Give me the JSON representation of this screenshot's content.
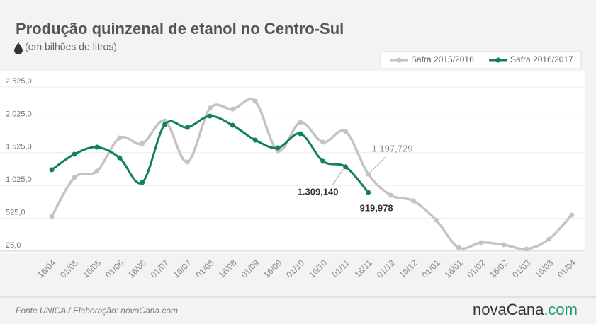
{
  "chart_data": {
    "type": "line",
    "title": "Produção quinzenal de etanol no Centro-Sul",
    "subtitle": "(em bilhões de litros)",
    "source": "Fonte UNICA / Elaboração: novaCana.com",
    "logo": {
      "name": "novaCana",
      "suffix": ".com"
    },
    "categories": [
      "16/04",
      "01/05",
      "16/05",
      "01/06",
      "16/06",
      "01/07",
      "16/07",
      "01/08",
      "16/08",
      "01/09",
      "16/09",
      "01/10",
      "16/10",
      "01/11",
      "16/11",
      "01/12",
      "16/12",
      "01/01",
      "16/01",
      "01/02",
      "16/02",
      "01/03",
      "16/03",
      "01/04"
    ],
    "series": [
      {
        "name": "Safra 2015/2016",
        "color": "#c4c4c4",
        "values": [
          553,
          1146,
          1243,
          1749,
          1663,
          2008,
          1383,
          2202,
          2190,
          2309,
          1555,
          1986,
          1684,
          1846,
          1197.729,
          876,
          790,
          499,
          79,
          154,
          122,
          57,
          208,
          575
        ],
        "value_labels": [
          null,
          null,
          null,
          null,
          null,
          null,
          null,
          null,
          null,
          null,
          null,
          null,
          null,
          null,
          "1.197,729",
          null,
          null,
          null,
          null,
          null,
          null,
          null,
          null,
          null
        ]
      },
      {
        "name": "Safra 2016/2017",
        "color": "#137f60",
        "values": [
          1264,
          1501,
          1609,
          1447,
          1070,
          1954,
          1911,
          2083,
          1943,
          1717,
          1598,
          1814,
          1394,
          1309.14,
          919.978,
          null,
          null,
          null,
          null,
          null,
          null,
          null,
          null,
          null
        ],
        "value_labels": [
          null,
          null,
          null,
          null,
          null,
          null,
          null,
          null,
          null,
          null,
          null,
          null,
          null,
          "1.309,140",
          "919,978",
          null,
          null,
          null,
          null,
          null,
          null,
          null,
          null,
          null
        ]
      }
    ],
    "ylim": [
      25,
      2525
    ],
    "yticks": [
      {
        "value": 25,
        "label": "25,0"
      },
      {
        "value": 525,
        "label": "525,0"
      },
      {
        "value": 1025,
        "label": "1.025,0"
      },
      {
        "value": 1525,
        "label": "1.525,0"
      },
      {
        "value": 2025,
        "label": "2.025,0"
      },
      {
        "value": 2525,
        "label": "2.525,0"
      }
    ],
    "grid": true,
    "legend": "top-right"
  }
}
